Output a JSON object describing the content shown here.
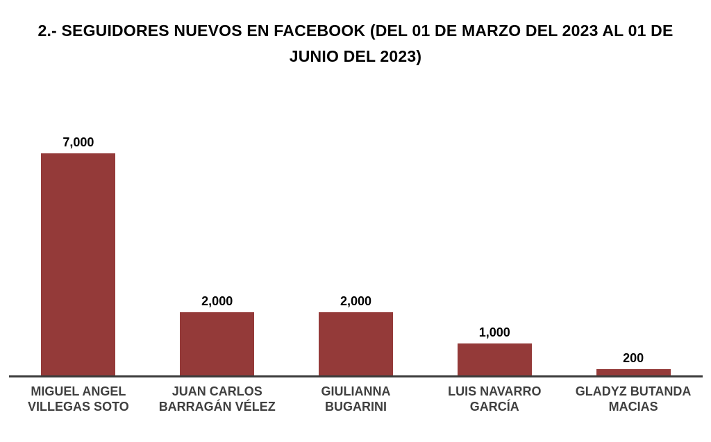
{
  "title": {
    "lines": [
      "2.- SEGUIDORES NUEVOS EN FACEBOOK (DEL 01 DE MARZO DEL 2023 AL 01 DE",
      "JUNIO DEL 2023)"
    ]
  },
  "chart_data": {
    "type": "bar",
    "title": "2.- SEGUIDORES NUEVOS EN FACEBOOK (DEL 01 DE MARZO DEL 2023 AL 01 DE JUNIO DEL 2023)",
    "categories": [
      "MIGUEL ANGEL\nVILLEGAS SOTO",
      "JUAN CARLOS\nBARRAGÁN VÉLEZ",
      "GIULIANNA\nBUGARINI",
      "LUIS NAVARRO\nGARCÍA",
      "GLADYZ BUTANDA\nMACIAS"
    ],
    "values": [
      7000,
      2000,
      2000,
      1000,
      200
    ],
    "value_labels": [
      "7,000",
      "2,000",
      "2,000",
      "1,000",
      "200"
    ],
    "xlabel": "",
    "ylabel": "",
    "ylim": [
      0,
      7000
    ],
    "grid": false,
    "legend": false,
    "colors": {
      "bar": "#943A39",
      "axis_line": "#3B3B3B",
      "category_label": "#3F3F3F",
      "value_label": "#000000",
      "title": "#000000"
    }
  }
}
